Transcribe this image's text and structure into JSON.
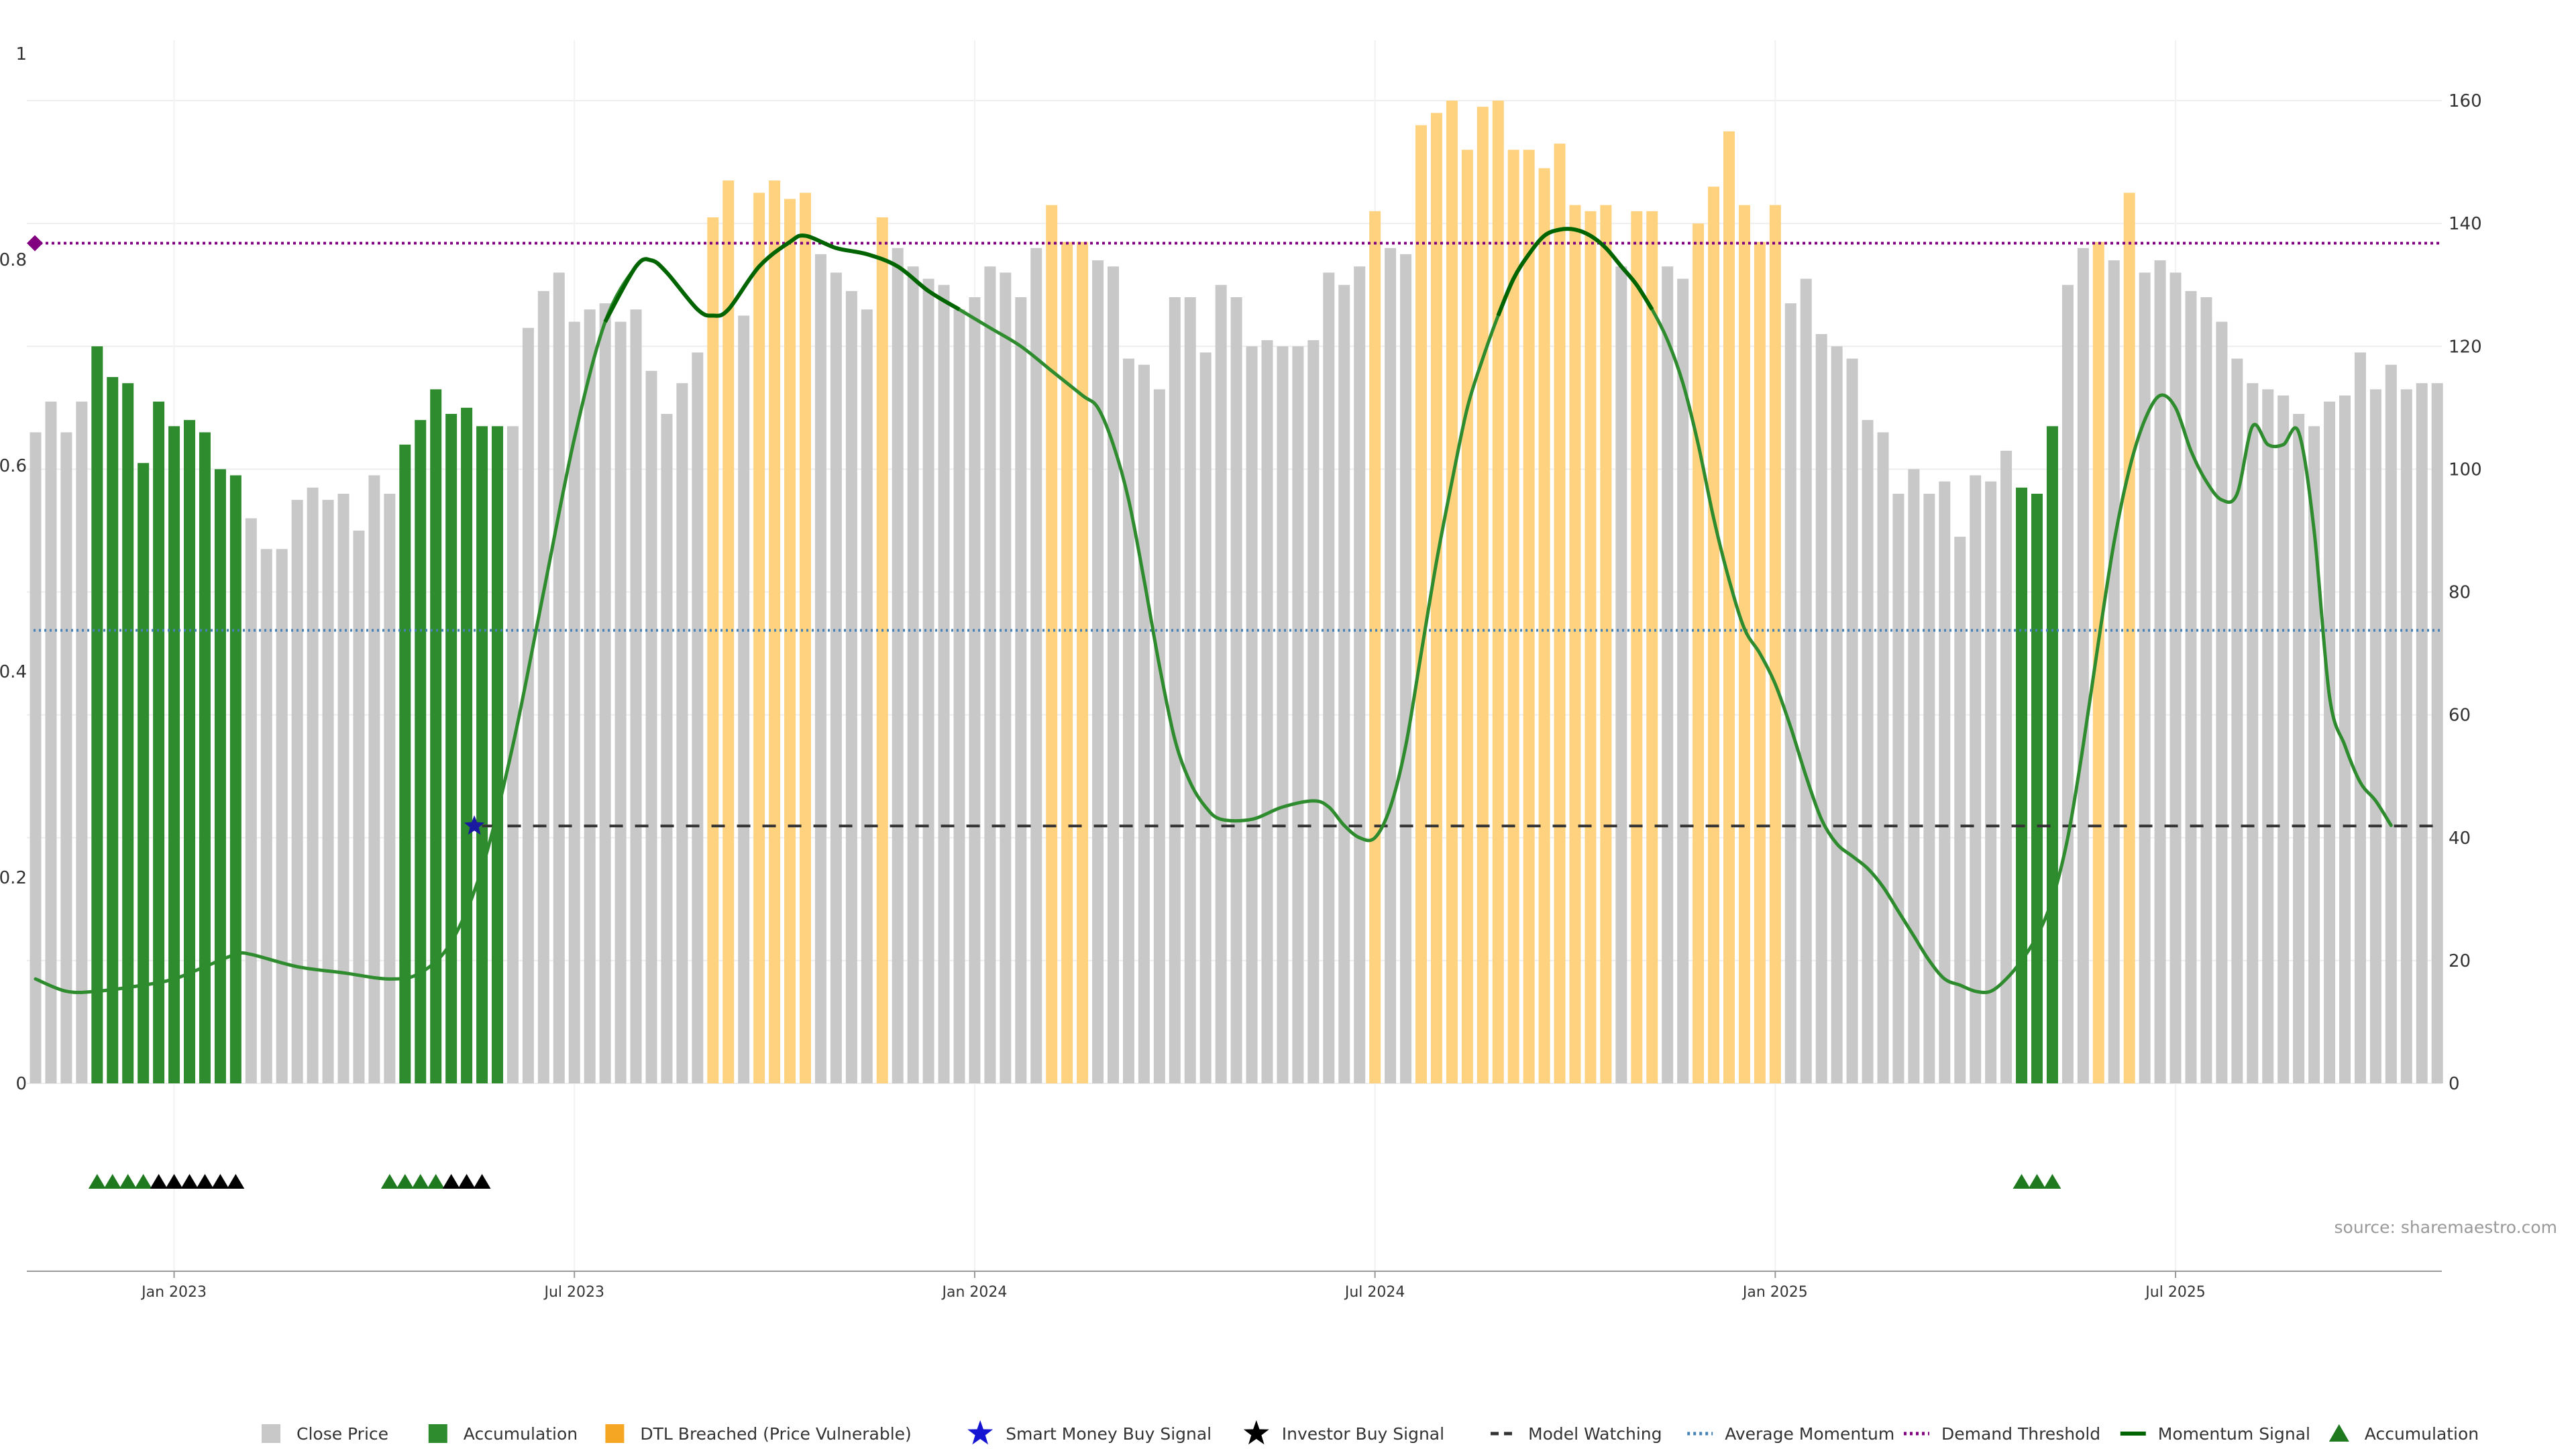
{
  "chart_data": {
    "type": "bar",
    "source": "source: sharemaestro.com",
    "left_axis": {
      "ticks": [
        "0",
        "0.2",
        "0.4",
        "0.6",
        "0.8",
        "1"
      ],
      "range": [
        0,
        1
      ]
    },
    "right_axis": {
      "ticks": [
        "0",
        "20",
        "40",
        "60",
        "80",
        "100",
        "120",
        "140",
        "160"
      ],
      "range": [
        0,
        160
      ]
    },
    "x_ticks": [
      {
        "label": "Jan 2023",
        "index": 9
      },
      {
        "label": "Jul 2023",
        "index": 35
      },
      {
        "label": "Jan 2024",
        "index": 61
      },
      {
        "label": "Jul 2024",
        "index": 87
      },
      {
        "label": "Jan 2025",
        "index": 113
      },
      {
        "label": "Jul 2025",
        "index": 139
      }
    ],
    "colors": {
      "close": "#c8c8c8",
      "accumulation": "#2e8b2e",
      "breached": "#ffd280",
      "momentum": "#2e8b2e",
      "momentum_dark": "#006400",
      "momentum_mid": "#808000",
      "watching": "#333333",
      "average": "#4682b4",
      "demand": "#800080",
      "grid": "#eeeeee"
    },
    "values": [
      106,
      111,
      106,
      111,
      120,
      115,
      114,
      101,
      111,
      107,
      108,
      106,
      100,
      99,
      92,
      87,
      87,
      95,
      97,
      95,
      96,
      90,
      99,
      96,
      104,
      108,
      113,
      109,
      110,
      107,
      107,
      107,
      123,
      129,
      132,
      124,
      126,
      127,
      124,
      126,
      116,
      109,
      114,
      119,
      141,
      147,
      125,
      145,
      147,
      144,
      145,
      135,
      132,
      129,
      126,
      141,
      136,
      133,
      131,
      130,
      126,
      128,
      133,
      132,
      128,
      136,
      143,
      137,
      137,
      134,
      133,
      118,
      117,
      113,
      128,
      128,
      119,
      130,
      128,
      120,
      121,
      120,
      120,
      121,
      132,
      130,
      133,
      142,
      136,
      135,
      156,
      158,
      160,
      152,
      159,
      160,
      152,
      152,
      149,
      153,
      143,
      142,
      143,
      133,
      142,
      142,
      133,
      131,
      140,
      146,
      155,
      143,
      137,
      143,
      127,
      131,
      122,
      120,
      118,
      108,
      106,
      96,
      100,
      96,
      98,
      89,
      99,
      98,
      103,
      97,
      96,
      107,
      130,
      136,
      137,
      134,
      145,
      132,
      134,
      132,
      129,
      128,
      124,
      118,
      114,
      113,
      112,
      109,
      107,
      111,
      112,
      119,
      113,
      117,
      113,
      114,
      114
    ],
    "bar_category": [
      "c",
      "c",
      "c",
      "c",
      "a",
      "a",
      "a",
      "a",
      "a",
      "a",
      "a",
      "a",
      "a",
      "a",
      "c",
      "c",
      "c",
      "c",
      "c",
      "c",
      "c",
      "c",
      "c",
      "c",
      "a",
      "a",
      "a",
      "a",
      "a",
      "a",
      "a",
      "c",
      "c",
      "c",
      "c",
      "c",
      "c",
      "c",
      "c",
      "c",
      "c",
      "c",
      "c",
      "c",
      "b",
      "b",
      "c",
      "b",
      "b",
      "b",
      "b",
      "c",
      "c",
      "c",
      "c",
      "b",
      "c",
      "c",
      "c",
      "c",
      "c",
      "c",
      "c",
      "c",
      "c",
      "c",
      "b",
      "b",
      "b",
      "c",
      "c",
      "c",
      "c",
      "c",
      "c",
      "c",
      "c",
      "c",
      "c",
      "c",
      "c",
      "c",
      "c",
      "c",
      "c",
      "c",
      "c",
      "b",
      "c",
      "c",
      "b",
      "b",
      "b",
      "b",
      "b",
      "b",
      "b",
      "b",
      "b",
      "b",
      "b",
      "b",
      "b",
      "c",
      "b",
      "b",
      "c",
      "c",
      "b",
      "b",
      "b",
      "b",
      "b",
      "b",
      "c",
      "c",
      "c",
      "c",
      "c",
      "c",
      "c",
      "c",
      "c",
      "c",
      "c",
      "c",
      "c",
      "c",
      "c",
      "a",
      "a",
      "a",
      "c",
      "c",
      "b",
      "c",
      "b",
      "c",
      "c",
      "c",
      "c",
      "c",
      "c",
      "c",
      "c",
      "c",
      "c",
      "c",
      "c",
      "c",
      "c",
      "c",
      "c",
      "c",
      "c",
      "c",
      "c"
    ],
    "momentum_signal": {
      "description": "values on 0-160 right axis",
      "points": [
        [
          0,
          17
        ],
        [
          2,
          15
        ],
        [
          4,
          15
        ],
        [
          7,
          16
        ],
        [
          9,
          17
        ],
        [
          11,
          19
        ],
        [
          13,
          21
        ],
        [
          14,
          21
        ],
        [
          17,
          19
        ],
        [
          20,
          18
        ],
        [
          23,
          17
        ],
        [
          25,
          18
        ],
        [
          27,
          23
        ],
        [
          29,
          35
        ],
        [
          31,
          55
        ],
        [
          33,
          80
        ],
        [
          35,
          105
        ],
        [
          37,
          124
        ],
        [
          39,
          133
        ],
        [
          40,
          134
        ],
        [
          41,
          132
        ],
        [
          43,
          126
        ],
        [
          44,
          125
        ],
        [
          45,
          126
        ],
        [
          47,
          133
        ],
        [
          49,
          137
        ],
        [
          50,
          138
        ],
        [
          52,
          136
        ],
        [
          54,
          135
        ],
        [
          56,
          133
        ],
        [
          58,
          129
        ],
        [
          60,
          126
        ],
        [
          62,
          123
        ],
        [
          64,
          120
        ],
        [
          66,
          116
        ],
        [
          68,
          112
        ],
        [
          69,
          110
        ],
        [
          70,
          104
        ],
        [
          71,
          95
        ],
        [
          72,
          82
        ],
        [
          73,
          68
        ],
        [
          74,
          56
        ],
        [
          75,
          49
        ],
        [
          76,
          45
        ],
        [
          77,
          43
        ],
        [
          79,
          43
        ],
        [
          81,
          45
        ],
        [
          83,
          46
        ],
        [
          84,
          45
        ],
        [
          85,
          42
        ],
        [
          86,
          40
        ],
        [
          87,
          40
        ],
        [
          88,
          45
        ],
        [
          89,
          55
        ],
        [
          90,
          70
        ],
        [
          91,
          85
        ],
        [
          92,
          98
        ],
        [
          93,
          110
        ],
        [
          94,
          118
        ],
        [
          95,
          125
        ],
        [
          96,
          131
        ],
        [
          97,
          135
        ],
        [
          98,
          138
        ],
        [
          99,
          139
        ],
        [
          100,
          139
        ],
        [
          101,
          138
        ],
        [
          102,
          136
        ],
        [
          103,
          133
        ],
        [
          104,
          130
        ],
        [
          105,
          126
        ],
        [
          106,
          121
        ],
        [
          107,
          114
        ],
        [
          108,
          104
        ],
        [
          109,
          92
        ],
        [
          110,
          82
        ],
        [
          111,
          74
        ],
        [
          112,
          70
        ],
        [
          113,
          65
        ],
        [
          114,
          58
        ],
        [
          115,
          50
        ],
        [
          116,
          43
        ],
        [
          117,
          39
        ],
        [
          118,
          37
        ],
        [
          119,
          35
        ],
        [
          120,
          32
        ],
        [
          121,
          28
        ],
        [
          122,
          24
        ],
        [
          123,
          20
        ],
        [
          124,
          17
        ],
        [
          125,
          16
        ],
        [
          126,
          15
        ],
        [
          127,
          15
        ],
        [
          128,
          17
        ],
        [
          129,
          20
        ],
        [
          130,
          24
        ],
        [
          131,
          30
        ],
        [
          132,
          40
        ],
        [
          133,
          55
        ],
        [
          134,
          72
        ],
        [
          135,
          88
        ],
        [
          136,
          100
        ],
        [
          137,
          108
        ],
        [
          138,
          112
        ],
        [
          139,
          110
        ],
        [
          140,
          103
        ],
        [
          141,
          98
        ],
        [
          142,
          95
        ],
        [
          143,
          96
        ],
        [
          144,
          107
        ],
        [
          145,
          104
        ],
        [
          146,
          104
        ],
        [
          147,
          106
        ],
        [
          148,
          90
        ],
        [
          149,
          63
        ],
        [
          150,
          55
        ],
        [
          151,
          49
        ],
        [
          152,
          46
        ],
        [
          153,
          42
        ]
      ]
    },
    "model_watching": {
      "value": 0.25,
      "start_index": 29
    },
    "average_momentum": {
      "value": 0.44
    },
    "demand_threshold": {
      "value": 0.816
    },
    "smart_money_signal": {
      "index": 28.5,
      "value": 0.25
    },
    "accumulation_markers": [
      4,
      5,
      6,
      7,
      23,
      24,
      25,
      26,
      129,
      130,
      131
    ],
    "investor_markers": [
      8,
      9,
      10,
      11,
      12,
      13,
      27,
      28,
      29
    ],
    "legend": [
      {
        "label": "Close Price",
        "icon": "square-grey"
      },
      {
        "label": "Accumulation",
        "icon": "square-green"
      },
      {
        "label": "DTL Breached (Price Vulnerable)",
        "icon": "square-orange"
      },
      {
        "label": "Smart Money Buy Signal",
        "icon": "star-blue"
      },
      {
        "label": "Investor Buy Signal",
        "icon": "star-black"
      },
      {
        "label": "Model Watching",
        "icon": "dash-black"
      },
      {
        "label": "Average Momentum",
        "icon": "dot-blue"
      },
      {
        "label": "Demand Threshold",
        "icon": "dot-purple"
      },
      {
        "label": "Momentum Signal",
        "icon": "line-green"
      },
      {
        "label": "Accumulation",
        "icon": "triangle-green"
      }
    ]
  }
}
